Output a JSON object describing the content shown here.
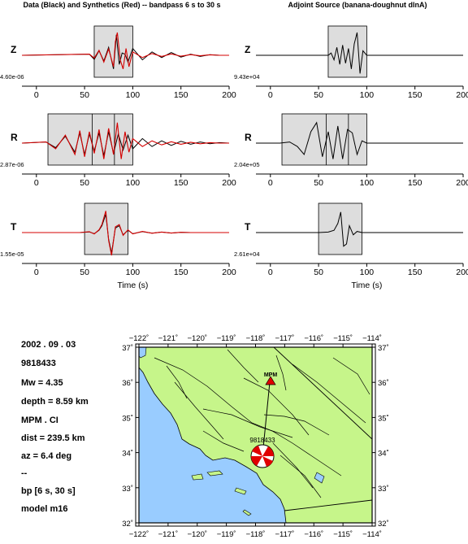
{
  "titles": {
    "left": "Data (Black) and Synthetics (Red) -- bandpass 6 s to 30 s",
    "right": "Adjoint Source (banana-doughnut dlnA)"
  },
  "chart_data": [
    {
      "type": "line",
      "panel": "data-synthetics",
      "component": "Z",
      "amplitude_label": "4.60e-06",
      "xlim": [
        -15,
        200
      ],
      "xticks": [
        "0",
        "50",
        "100",
        "150",
        "200"
      ],
      "xlabel": "",
      "windows": [
        [
          60,
          100
        ]
      ],
      "window_dividers": [],
      "series": [
        {
          "color": "#000000",
          "x": [
            -15,
            55,
            60,
            65,
            70,
            75,
            80,
            83,
            86,
            89,
            92,
            95,
            100,
            110,
            120,
            130,
            140,
            150,
            160,
            170,
            180,
            190,
            200
          ],
          "y": [
            0.0,
            0.05,
            -0.18,
            0.2,
            -0.25,
            0.35,
            -0.6,
            0.9,
            -0.4,
            0.1,
            0.05,
            -0.3,
            0.3,
            -0.2,
            0.15,
            -0.1,
            0.12,
            -0.08,
            0.05,
            -0.05,
            0.03,
            0.0,
            0.0
          ]
        },
        {
          "color": "#d40000",
          "x": [
            -15,
            55,
            60,
            65,
            70,
            75,
            80,
            82,
            84,
            87,
            90,
            93,
            96,
            100,
            110,
            120,
            130,
            140,
            150,
            160,
            170,
            180,
            190,
            200
          ],
          "y": [
            0.0,
            0.05,
            -0.12,
            0.22,
            -0.3,
            0.28,
            -0.5,
            0.6,
            1.0,
            -0.2,
            -0.6,
            0.3,
            -0.5,
            0.15,
            -0.1,
            0.08,
            -0.05,
            0.06,
            -0.04,
            0.03,
            -0.02,
            0.02,
            0.0,
            0.0
          ]
        }
      ]
    },
    {
      "type": "line",
      "panel": "data-synthetics",
      "component": "R",
      "amplitude_label": "2.87e-06",
      "xlim": [
        -15,
        200
      ],
      "xticks": [
        "0",
        "50",
        "100",
        "150",
        "200"
      ],
      "xlabel": "",
      "windows": [
        [
          12,
          100
        ]
      ],
      "window_dividers": [
        58,
        81
      ],
      "series": [
        {
          "color": "#000000",
          "x": [
            -15,
            10,
            20,
            30,
            40,
            45,
            50,
            55,
            60,
            65,
            70,
            75,
            80,
            85,
            90,
            95,
            100,
            110,
            120,
            130,
            140,
            150,
            160,
            170,
            180,
            190,
            200
          ],
          "y": [
            0.0,
            0.05,
            -0.2,
            0.3,
            -0.4,
            0.45,
            -0.5,
            0.4,
            -0.35,
            0.45,
            -0.55,
            0.5,
            -0.45,
            0.4,
            -0.3,
            0.35,
            -0.25,
            0.2,
            -0.15,
            0.1,
            -0.1,
            0.08,
            -0.05,
            0.05,
            -0.03,
            0.02,
            0.0
          ]
        },
        {
          "color": "#d40000",
          "x": [
            -15,
            10,
            20,
            30,
            40,
            45,
            50,
            55,
            60,
            65,
            70,
            75,
            80,
            84,
            88,
            92,
            96,
            100,
            110,
            120,
            130,
            140,
            150,
            160,
            170,
            180,
            190,
            200
          ],
          "y": [
            0.0,
            0.05,
            -0.25,
            0.35,
            -0.5,
            0.55,
            -0.6,
            0.5,
            -0.45,
            0.6,
            -0.7,
            0.65,
            -0.5,
            0.9,
            -0.7,
            0.5,
            -0.4,
            0.2,
            -0.15,
            0.1,
            -0.08,
            0.06,
            -0.05,
            0.04,
            -0.03,
            0.02,
            0.0,
            0.0
          ]
        }
      ]
    },
    {
      "type": "line",
      "panel": "data-synthetics",
      "component": "T",
      "amplitude_label": "1.55e-05",
      "xlim": [
        -15,
        200
      ],
      "xticks": [
        "0",
        "50",
        "100",
        "150",
        "200"
      ],
      "xlabel": "Time (s)",
      "windows": [
        [
          50,
          95
        ]
      ],
      "window_dividers": [],
      "series": [
        {
          "color": "#000000",
          "x": [
            -15,
            45,
            55,
            60,
            65,
            68,
            72,
            75,
            78,
            82,
            86,
            90,
            95,
            100,
            110,
            120,
            130,
            140,
            150,
            160,
            170,
            180,
            190,
            200
          ],
          "y": [
            0.0,
            0.0,
            0.03,
            -0.05,
            0.1,
            0.3,
            0.8,
            -0.3,
            -0.9,
            0.2,
            0.3,
            -0.1,
            0.1,
            -0.05,
            0.04,
            -0.03,
            0.02,
            -0.02,
            0.01,
            0.0,
            0.0,
            0.0,
            0.0,
            0.0
          ]
        },
        {
          "color": "#d40000",
          "x": [
            -15,
            45,
            55,
            60,
            65,
            68,
            72,
            75,
            78,
            82,
            86,
            90,
            95,
            100,
            110,
            120,
            130,
            140,
            150,
            160,
            170,
            180,
            190,
            200
          ],
          "y": [
            0.0,
            0.0,
            0.04,
            -0.06,
            0.12,
            0.35,
            0.95,
            -0.35,
            -1.0,
            0.25,
            0.35,
            -0.12,
            0.12,
            -0.06,
            0.05,
            -0.03,
            0.02,
            -0.02,
            0.01,
            0.0,
            0.0,
            0.0,
            0.0,
            0.0
          ]
        }
      ]
    },
    {
      "type": "line",
      "panel": "adjoint-source",
      "component": "Z",
      "amplitude_label": "9.43e+04",
      "xlim": [
        -15,
        200
      ],
      "xticks": [
        "0",
        "50",
        "100",
        "150",
        "200"
      ],
      "xlabel": "",
      "windows": [
        [
          60,
          100
        ]
      ],
      "window_dividers": [],
      "series": [
        {
          "color": "#000000",
          "x": [
            -15,
            60,
            63,
            66,
            69,
            72,
            75,
            78,
            81,
            84,
            87,
            90,
            93,
            96,
            100,
            200
          ],
          "y": [
            0.0,
            0.0,
            0.1,
            -0.2,
            0.35,
            -0.4,
            0.45,
            -0.35,
            0.3,
            -0.6,
            0.5,
            1.0,
            -0.8,
            0.2,
            0.0,
            0.0
          ]
        }
      ]
    },
    {
      "type": "line",
      "panel": "adjoint-source",
      "component": "R",
      "amplitude_label": "2.04e+05",
      "xlim": [
        -15,
        200
      ],
      "xticks": [
        "0",
        "50",
        "100",
        "150",
        "200"
      ],
      "xlabel": "",
      "windows": [
        [
          12,
          100
        ]
      ],
      "window_dividers": [
        58,
        81
      ],
      "series": [
        {
          "color": "#000000",
          "x": [
            -15,
            10,
            20,
            28,
            35,
            42,
            48,
            54,
            60,
            65,
            70,
            75,
            80,
            85,
            90,
            95,
            100,
            200
          ],
          "y": [
            0.0,
            0.0,
            0.05,
            -0.15,
            -0.5,
            0.5,
            0.9,
            -0.6,
            0.5,
            -0.7,
            0.75,
            -0.7,
            0.6,
            0.45,
            -0.5,
            0.1,
            0.0,
            0.0
          ]
        }
      ]
    },
    {
      "type": "line",
      "panel": "adjoint-source",
      "component": "T",
      "amplitude_label": "2.61e+04",
      "xlim": [
        -15,
        200
      ],
      "xticks": [
        "0",
        "50",
        "100",
        "150",
        "200"
      ],
      "xlabel": "Time (s)",
      "windows": [
        [
          50,
          95
        ]
      ],
      "window_dividers": [],
      "series": [
        {
          "color": "#000000",
          "x": [
            -15,
            50,
            60,
            66,
            70,
            73,
            76,
            79,
            82,
            86,
            90,
            95,
            200
          ],
          "y": [
            0.0,
            0.0,
            0.02,
            0.1,
            0.4,
            0.9,
            -0.6,
            -0.5,
            0.3,
            -0.1,
            0.05,
            0.0,
            0.0
          ]
        }
      ]
    }
  ],
  "event_info": {
    "date": "2002 . 09 . 03",
    "event_id": "9818433",
    "magnitude": "Mw = 4.35",
    "depth": "depth = 8.59 km",
    "station": "MPM . CI",
    "distance": "dist = 239.5 km",
    "azimuth": "az = 6.4 deg",
    "separator": "--",
    "bandpass": "bp [6 s, 30 s]",
    "model": "model m16"
  },
  "map": {
    "lon_labels": [
      "−122˚",
      "−121˚",
      "−120˚",
      "−119˚",
      "−118˚",
      "−117˚",
      "−116˚",
      "−115˚",
      "−114˚"
    ],
    "lat_labels": [
      "37˚",
      "36˚",
      "35˚",
      "34˚",
      "33˚",
      "32˚"
    ],
    "lon_range": [
      -122,
      -114
    ],
    "lat_range": [
      32,
      37
    ],
    "station_label": "MPM",
    "event_label": "9818433",
    "colors": {
      "land": "#c6f58a",
      "sea": "#99ccff",
      "station": "#e00000",
      "beachball": "#e00000"
    }
  }
}
